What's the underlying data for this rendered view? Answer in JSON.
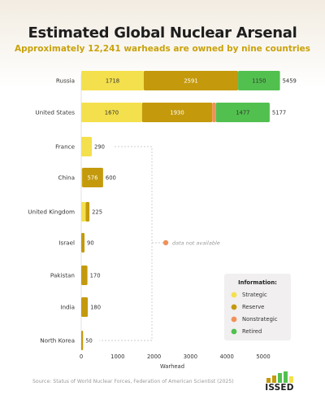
{
  "title": "Estimated Global Nuclear Arsenal",
  "subtitle": "Approximately 12,241 warheads are owned by nine countries",
  "source": "Source: Status of World Nuclear Forces, Federation of American Scientist (2025)",
  "logo_text": "ISSED",
  "colors": {
    "strategic": "#f4e04d",
    "reserve": "#c49a0c",
    "nonstrategic": "#f0915a",
    "retired": "#52c04f"
  },
  "chart_data": {
    "type": "bar",
    "orientation": "horizontal",
    "stacked": true,
    "categories": [
      "Russia",
      "United States",
      "France",
      "China",
      "United Kingdom",
      "Israel",
      "Pakistan",
      "India",
      "North Korea"
    ],
    "series": [
      {
        "name": "Strategic",
        "values": [
          1718,
          1670,
          290,
          24,
          120,
          null,
          null,
          null,
          null
        ]
      },
      {
        "name": "Reserve",
        "values": [
          2591,
          1930,
          null,
          576,
          105,
          90,
          170,
          180,
          50
        ]
      },
      {
        "name": "Nonstrategic",
        "values": [
          0,
          100,
          null,
          null,
          null,
          null,
          null,
          null,
          null
        ]
      },
      {
        "name": "Retired",
        "values": [
          1150,
          1477,
          null,
          null,
          null,
          null,
          null,
          null,
          null
        ]
      }
    ],
    "segment_labels": [
      [
        "1718",
        "2591",
        "",
        "1150"
      ],
      [
        "1670",
        "1930",
        "",
        "1477"
      ],
      [
        "",
        "",
        "",
        ""
      ],
      [
        "",
        "576",
        "",
        ""
      ],
      [
        "",
        "",
        "",
        ""
      ],
      [
        "",
        "",
        "",
        ""
      ],
      [
        "",
        "",
        "",
        ""
      ],
      [
        "",
        "",
        "",
        ""
      ],
      [
        "",
        "",
        "",
        ""
      ]
    ],
    "totals": [
      5459,
      5177,
      290,
      600,
      225,
      90,
      170,
      180,
      50
    ],
    "xlabel": "Warhead",
    "xlim": [
      0,
      5459
    ],
    "xticks": [
      0,
      1000,
      2000,
      3000,
      4000,
      5000
    ],
    "annotation": "data not available",
    "legend": {
      "title": "Information:",
      "position": "bottom-right",
      "items": [
        "Strategic",
        "Reserve",
        "Nonstrategic",
        "Retired"
      ]
    }
  }
}
